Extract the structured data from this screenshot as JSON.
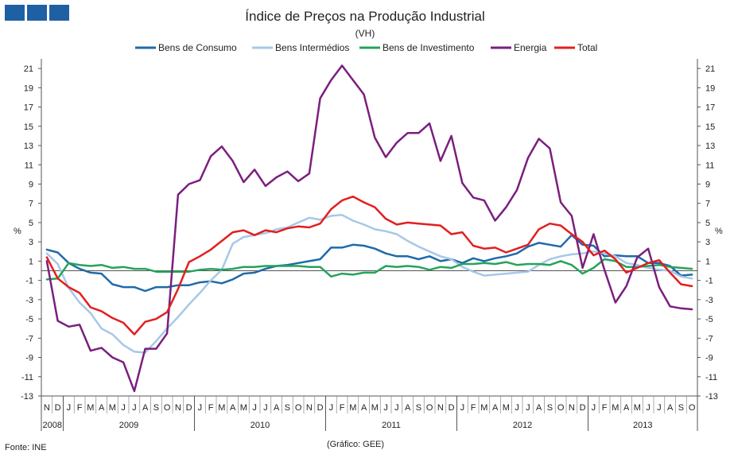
{
  "logo": {
    "color": "#1f5fa3"
  },
  "footer": {
    "source": "Fonte:  INE",
    "credit": "(Gráfico:  GEE)"
  },
  "chart_data": {
    "type": "line",
    "title": "Índice de Preços na Produção Industrial",
    "subtitle": "(VH)",
    "ylabel_left": "%",
    "ylabel_right": "%",
    "ylim": [
      -13,
      22
    ],
    "yticks": [
      21,
      19,
      17,
      15,
      13,
      11,
      9,
      7,
      5,
      3,
      1,
      -1,
      -3,
      -5,
      -7,
      -9,
      -11,
      -13
    ],
    "grid": false,
    "legend_position": "top",
    "month_labels": [
      "N",
      "D",
      "J",
      "F",
      "M",
      "A",
      "M",
      "J",
      "J",
      "A",
      "S",
      "O",
      "N",
      "D",
      "J",
      "F",
      "M",
      "A",
      "M",
      "J",
      "J",
      "A",
      "S",
      "O",
      "N",
      "D",
      "J",
      "F",
      "M",
      "A",
      "M",
      "J",
      "J",
      "A",
      "S",
      "O",
      "N",
      "D",
      "J",
      "F",
      "M",
      "A",
      "M",
      "J",
      "J",
      "A",
      "S",
      "O",
      "N",
      "D",
      "J",
      "F",
      "M",
      "A",
      "M",
      "J",
      "J",
      "A",
      "S",
      "O"
    ],
    "years": [
      {
        "label": "2008",
        "start": 0,
        "end": 1
      },
      {
        "label": "2009",
        "start": 2,
        "end": 13
      },
      {
        "label": "2010",
        "start": 14,
        "end": 25
      },
      {
        "label": "2011",
        "start": 26,
        "end": 37
      },
      {
        "label": "2012",
        "start": 38,
        "end": 49
      },
      {
        "label": "2013",
        "start": 50,
        "end": 59
      }
    ],
    "series": [
      {
        "name": "Bens de Consumo",
        "color": "#1f6aa8",
        "width": 2.5,
        "values": [
          2.2,
          1.9,
          0.8,
          0.2,
          -0.2,
          -0.3,
          -1.4,
          -1.7,
          -1.7,
          -2.1,
          -1.7,
          -1.7,
          -1.5,
          -1.5,
          -1.2,
          -1.1,
          -1.3,
          -0.9,
          -0.3,
          -0.2,
          0.2,
          0.5,
          0.6,
          0.8,
          1.0,
          1.2,
          2.4,
          2.4,
          2.7,
          2.6,
          2.3,
          1.8,
          1.5,
          1.5,
          1.2,
          1.5,
          1.0,
          1.2,
          0.8,
          1.3,
          1.0,
          1.3,
          1.5,
          1.8,
          2.5,
          2.9,
          2.7,
          2.5,
          3.7,
          2.7,
          2.6,
          1.5,
          1.6,
          1.5,
          1.5,
          0.8,
          0.8,
          0.5,
          -0.5,
          -0.4
        ]
      },
      {
        "name": "Bens Intermédios",
        "color": "#a6c8e8",
        "width": 2.5,
        "values": [
          1.8,
          0.7,
          -1.8,
          -3.3,
          -4.4,
          -6.0,
          -6.6,
          -7.7,
          -8.4,
          -8.5,
          -7.3,
          -6.0,
          -4.8,
          -3.5,
          -2.3,
          -1.0,
          0.1,
          2.8,
          3.5,
          3.7,
          3.9,
          4.3,
          4.5,
          5.0,
          5.5,
          5.3,
          5.7,
          5.8,
          5.2,
          4.8,
          4.3,
          4.1,
          3.8,
          3.1,
          2.5,
          2.0,
          1.5,
          1.2,
          0.4,
          -0.1,
          -0.5,
          -0.4,
          -0.3,
          -0.2,
          -0.1,
          0.6,
          1.2,
          1.5,
          1.7,
          1.8,
          2.0,
          1.8,
          1.5,
          0.8,
          0.6,
          0.3,
          0.1,
          0.0,
          -0.6,
          -0.8
        ]
      },
      {
        "name": "Bens de Investimento",
        "color": "#26a35a",
        "width": 2.5,
        "values": [
          -0.9,
          -0.8,
          0.8,
          0.6,
          0.5,
          0.6,
          0.3,
          0.4,
          0.2,
          0.2,
          -0.1,
          -0.1,
          -0.1,
          -0.1,
          0.1,
          0.2,
          0.1,
          0.2,
          0.4,
          0.4,
          0.5,
          0.5,
          0.5,
          0.5,
          0.4,
          0.4,
          -0.6,
          -0.3,
          -0.4,
          -0.2,
          -0.2,
          0.5,
          0.4,
          0.5,
          0.4,
          0.1,
          0.4,
          0.3,
          0.7,
          0.7,
          0.8,
          0.7,
          0.9,
          0.6,
          0.7,
          0.7,
          0.6,
          1.0,
          0.6,
          -0.3,
          0.3,
          1.2,
          1.0,
          0.4,
          0.4,
          0.5,
          0.6,
          0.4,
          0.3,
          0.2
        ]
      },
      {
        "name": "Energia",
        "color": "#7a1f7e",
        "width": 2.5,
        "values": [
          1.0,
          -5.2,
          -5.8,
          -5.6,
          -8.3,
          -8.0,
          -9.0,
          -9.5,
          -12.5,
          -8.1,
          -8.1,
          -6.5,
          7.9,
          9.0,
          9.4,
          11.9,
          12.9,
          11.4,
          9.2,
          10.5,
          8.8,
          9.7,
          10.3,
          9.3,
          10.1,
          17.9,
          19.8,
          21.3,
          19.8,
          18.3,
          13.8,
          11.8,
          13.3,
          14.3,
          14.3,
          15.3,
          11.4,
          14.0,
          9.1,
          7.6,
          7.3,
          5.2,
          6.6,
          8.4,
          11.7,
          13.7,
          12.7,
          7.1,
          5.7,
          0.3,
          3.8,
          0.1,
          -3.3,
          -1.6,
          1.4,
          2.3,
          -1.7,
          -3.7,
          -3.9,
          -4.0
        ]
      },
      {
        "name": "Total",
        "color": "#e21f1f",
        "width": 2.5,
        "values": [
          1.4,
          -0.8,
          -1.7,
          -2.3,
          -3.8,
          -4.2,
          -4.9,
          -5.4,
          -6.6,
          -5.3,
          -5.0,
          -4.3,
          -1.9,
          0.9,
          1.5,
          2.2,
          3.1,
          4.0,
          4.2,
          3.7,
          4.2,
          4.0,
          4.4,
          4.6,
          4.5,
          4.9,
          6.4,
          7.3,
          7.7,
          7.1,
          6.6,
          5.4,
          4.8,
          5.0,
          4.9,
          4.8,
          4.7,
          3.8,
          4.0,
          2.6,
          2.3,
          2.4,
          1.9,
          2.3,
          2.7,
          4.3,
          4.9,
          4.7,
          3.8,
          3.0,
          1.6,
          2.1,
          1.2,
          -0.2,
          0.3,
          0.8,
          1.1,
          -0.2,
          -1.4,
          -1.6
        ]
      }
    ]
  }
}
